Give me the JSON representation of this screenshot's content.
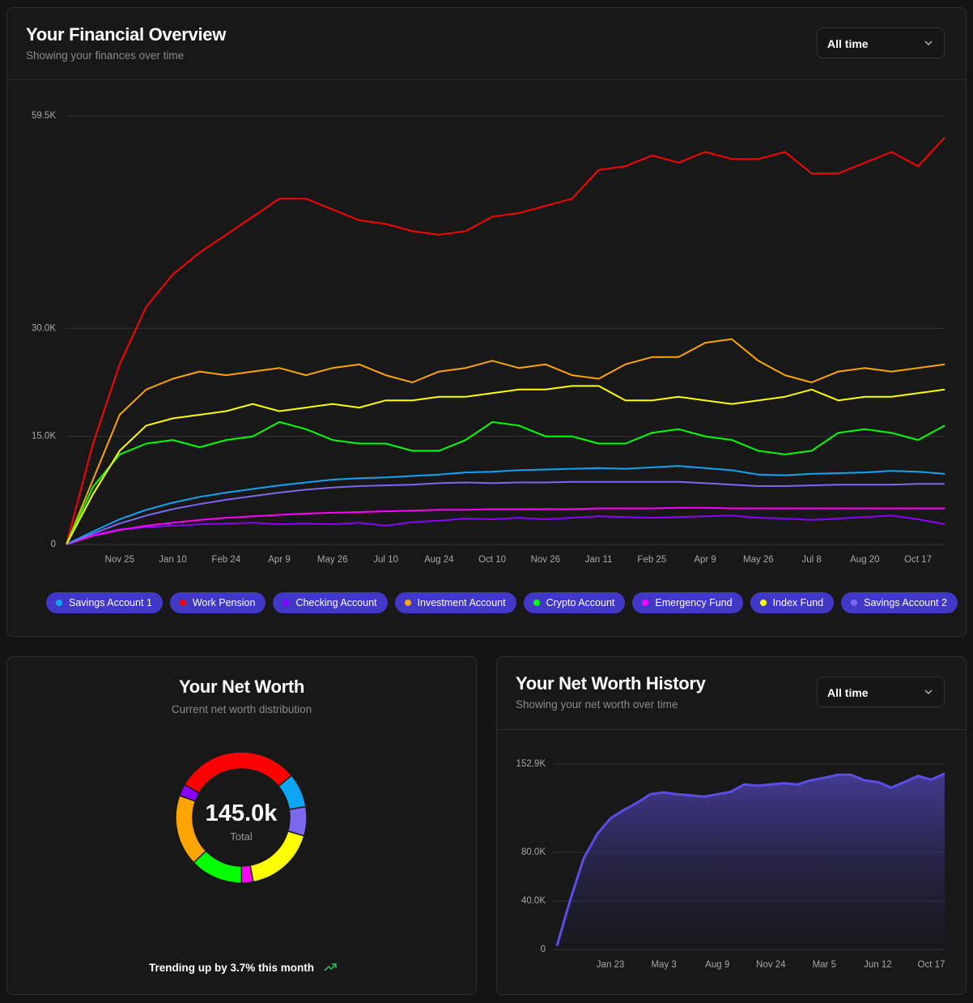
{
  "overview": {
    "title": "Your Financial Overview",
    "subtitle": "Showing your finances over time",
    "range": "All time"
  },
  "net_worth": {
    "title": "Your Net Worth",
    "subtitle": "Current net worth distribution",
    "total": "145.0k",
    "total_label": "Total",
    "trend": "Trending up by 3.7% this month"
  },
  "history": {
    "title": "Your Net Worth History",
    "subtitle": "Showing your net worth over time",
    "range": "All time"
  },
  "chart_data": [
    {
      "type": "line",
      "categories": [
        null,
        null,
        "Nov 25",
        null,
        "Jan 10",
        null,
        "Feb 24",
        null,
        "Apr 9",
        null,
        "May 26",
        null,
        "Jul 10",
        null,
        "Aug 24",
        null,
        "Oct 10",
        null,
        "Nov 26",
        null,
        "Jan 11",
        null,
        "Feb 25",
        null,
        "Apr 9",
        null,
        "May 26",
        null,
        "Jul 8",
        null,
        "Aug 20",
        null,
        "Oct 17",
        null
      ],
      "ylim": [
        0,
        59500
      ],
      "yticks": [
        0,
        {
          "value": 15000,
          "label": "15.0K"
        },
        {
          "value": 30000,
          "label": "30.0K"
        },
        {
          "value": 59500,
          "label": "59.5K"
        }
      ],
      "grid": true,
      "series": [
        {
          "name": "Savings Account 1",
          "color": "#0ea5f5",
          "values": [
            0,
            1800,
            3500,
            4800,
            5800,
            6600,
            7200,
            7700,
            8200,
            8600,
            9000,
            9200,
            9300,
            9500,
            9700,
            10000,
            10100,
            10300,
            10400,
            10500,
            10600,
            10500,
            10700,
            10900,
            10600,
            10300,
            9700,
            9600,
            9800,
            9900,
            10000,
            10200,
            10100,
            9800
          ]
        },
        {
          "name": "Work Pension",
          "color": "#ff0000",
          "values": [
            0,
            14000,
            25000,
            33000,
            37500,
            40500,
            43000,
            45500,
            48000,
            48000,
            46500,
            45000,
            44500,
            43500,
            43000,
            43500,
            45500,
            46000,
            47000,
            48000,
            52000,
            52500,
            54000,
            53000,
            54500,
            53500,
            53500,
            54500,
            51500,
            51500,
            53000,
            54500,
            52500,
            56500
          ]
        },
        {
          "name": "Checking Account",
          "color": "#8a00ff",
          "values": [
            0,
            1300,
            2100,
            2400,
            2600,
            2800,
            2900,
            3000,
            2800,
            2900,
            2800,
            3000,
            2600,
            3100,
            3300,
            3600,
            3500,
            3700,
            3500,
            3700,
            3900,
            3800,
            3700,
            3800,
            3900,
            4000,
            3700,
            3600,
            3400,
            3600,
            3800,
            4000,
            3500,
            2800
          ]
        },
        {
          "name": "Investment Account",
          "color": "#ffa500",
          "values": [
            0,
            9000,
            18000,
            21500,
            23000,
            24000,
            23500,
            24000,
            24500,
            23500,
            24500,
            25000,
            23500,
            22500,
            24000,
            24500,
            25500,
            24500,
            25000,
            23500,
            23000,
            25000,
            26000,
            26000,
            28000,
            28500,
            25500,
            23500,
            22500,
            24000,
            24500,
            24000,
            24500,
            25000
          ]
        },
        {
          "name": "Crypto Account",
          "color": "#00ff00",
          "values": [
            0,
            8000,
            12500,
            14000,
            14500,
            13500,
            14500,
            15000,
            17000,
            16000,
            14500,
            14000,
            14000,
            13000,
            13000,
            14500,
            17000,
            16500,
            15000,
            15000,
            14000,
            14000,
            15500,
            16000,
            15000,
            14500,
            13000,
            12500,
            13000,
            15500,
            16000,
            15500,
            14500,
            16500
          ]
        },
        {
          "name": "Emergency Fund",
          "color": "#ff00ff",
          "values": [
            0,
            1200,
            2000,
            2600,
            3000,
            3400,
            3700,
            3900,
            4100,
            4300,
            4400,
            4500,
            4600,
            4700,
            4800,
            4800,
            4900,
            4900,
            4900,
            4900,
            5000,
            5000,
            5000,
            5100,
            5100,
            5000,
            5000,
            5000,
            5000,
            5000,
            5000,
            5000,
            5000,
            5000
          ]
        },
        {
          "name": "Index Fund",
          "color": "#ffff00",
          "values": [
            0,
            7000,
            13000,
            16500,
            17500,
            18000,
            18500,
            19500,
            18500,
            19000,
            19500,
            19000,
            20000,
            20000,
            20500,
            20500,
            21000,
            21500,
            21500,
            22000,
            22000,
            20000,
            20000,
            20500,
            20000,
            19500,
            20000,
            20500,
            21500,
            20000,
            20500,
            20500,
            21000,
            21500
          ]
        },
        {
          "name": "Savings Account 2",
          "color": "#7b68ee",
          "values": [
            0,
            1500,
            2900,
            4000,
            4900,
            5600,
            6200,
            6700,
            7200,
            7600,
            7900,
            8100,
            8200,
            8300,
            8500,
            8600,
            8500,
            8600,
            8600,
            8700,
            8700,
            8700,
            8700,
            8700,
            8500,
            8300,
            8100,
            8100,
            8200,
            8300,
            8300,
            8300,
            8400,
            8400
          ]
        }
      ]
    },
    {
      "type": "donut",
      "values": [
        44400,
        12200,
        10400,
        25400,
        4200,
        18800,
        25400,
        4200
      ],
      "colors": [
        "#ff0000",
        "#0ea5f5",
        "#7b68ee",
        "#ffff00",
        "#ff00ff",
        "#00ff00",
        "#ffa500",
        "#8a00ff"
      ]
    },
    {
      "type": "area",
      "color": "#5b4ee6",
      "categories": [
        null,
        null,
        null,
        null,
        "Jan 23",
        null,
        null,
        null,
        "May 3",
        null,
        null,
        null,
        "Aug 9",
        null,
        null,
        null,
        "Nov 24",
        null,
        null,
        null,
        "Mar 5",
        null,
        null,
        null,
        "Jun 12",
        null,
        null,
        null,
        "Oct 17",
        null
      ],
      "values": [
        3000,
        41000,
        75000,
        95000,
        108000,
        115000,
        121000,
        128000,
        129500,
        128000,
        127000,
        126000,
        128000,
        130000,
        136000,
        135000,
        136000,
        137000,
        136000,
        139500,
        141500,
        144000,
        144000,
        139500,
        138000,
        133500,
        138000,
        143000,
        140000,
        145000
      ],
      "ylim": [
        0,
        152900
      ],
      "yticks": [
        0,
        {
          "value": 40000,
          "label": "40.0K"
        },
        {
          "value": 80000,
          "label": "80.0K"
        },
        {
          "value": 152900,
          "label": "152.9K"
        }
      ],
      "grid": true
    }
  ]
}
